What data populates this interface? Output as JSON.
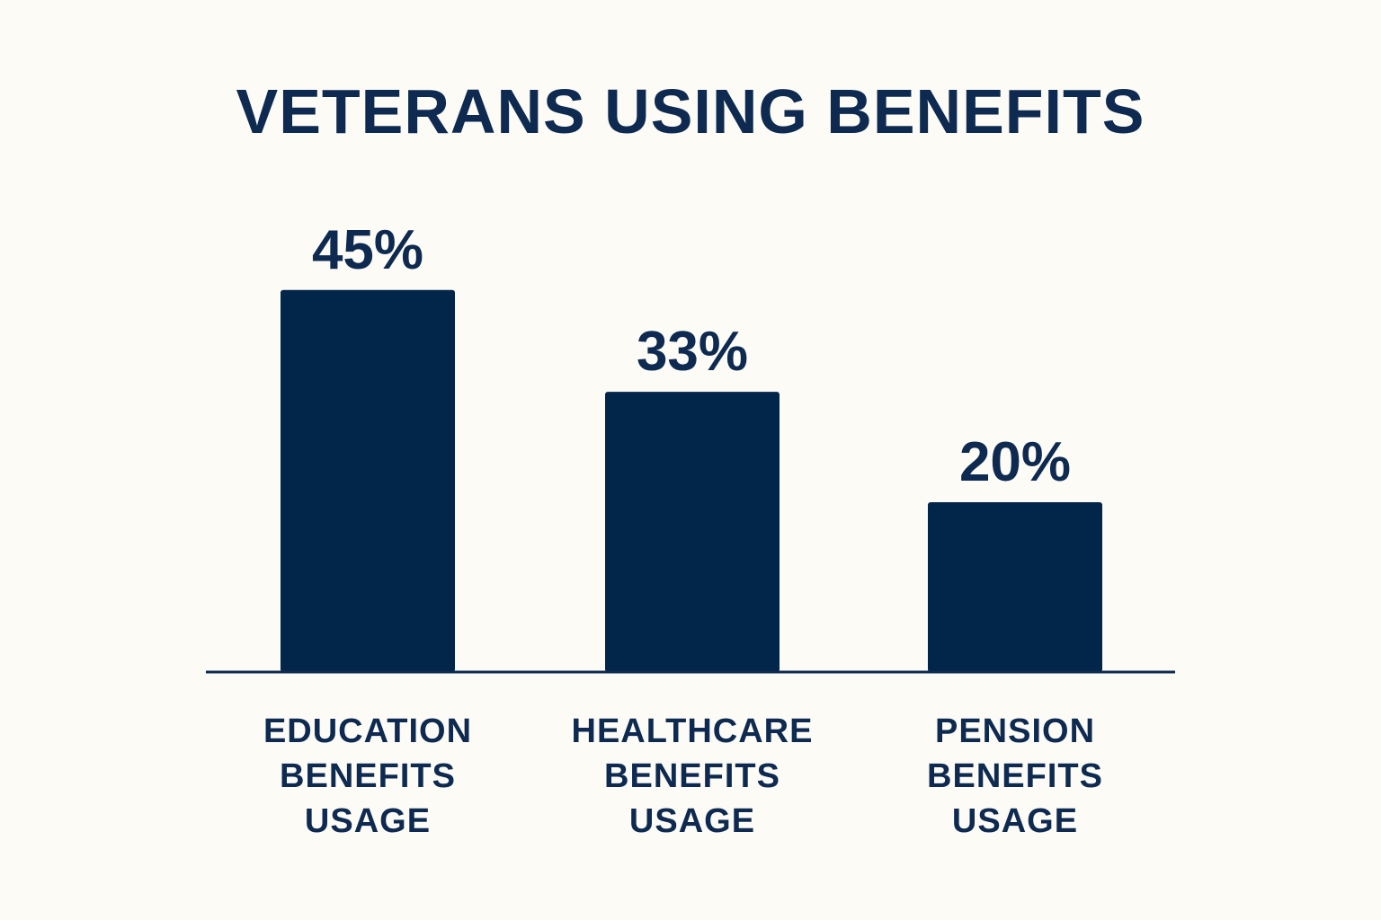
{
  "chart_data": {
    "type": "bar",
    "title": "VETERANS USING BENEFITS",
    "xlabel": "",
    "ylabel": "",
    "categories": [
      "EDUCATION BENEFITS USAGE",
      "HEALTHCARE BENEFITS USAGE",
      "PENSION BENEFITS USAGE"
    ],
    "category_lines": [
      [
        "EDUCATION",
        "BENEFITS",
        "USAGE"
      ],
      [
        "HEALTHCARE",
        "BENEFITS",
        "USAGE"
      ],
      [
        "PENSION",
        "BENEFITS",
        "USAGE"
      ]
    ],
    "values": [
      45,
      33,
      20
    ],
    "value_labels": [
      "45%",
      "33%",
      "20%"
    ],
    "ylim": [
      0,
      45
    ],
    "grid": false,
    "legend": "none",
    "colors": {
      "bar": "#02254a",
      "text": "#0e2a50",
      "axis": "#0e2a50",
      "background": "#fcfbf6"
    }
  }
}
